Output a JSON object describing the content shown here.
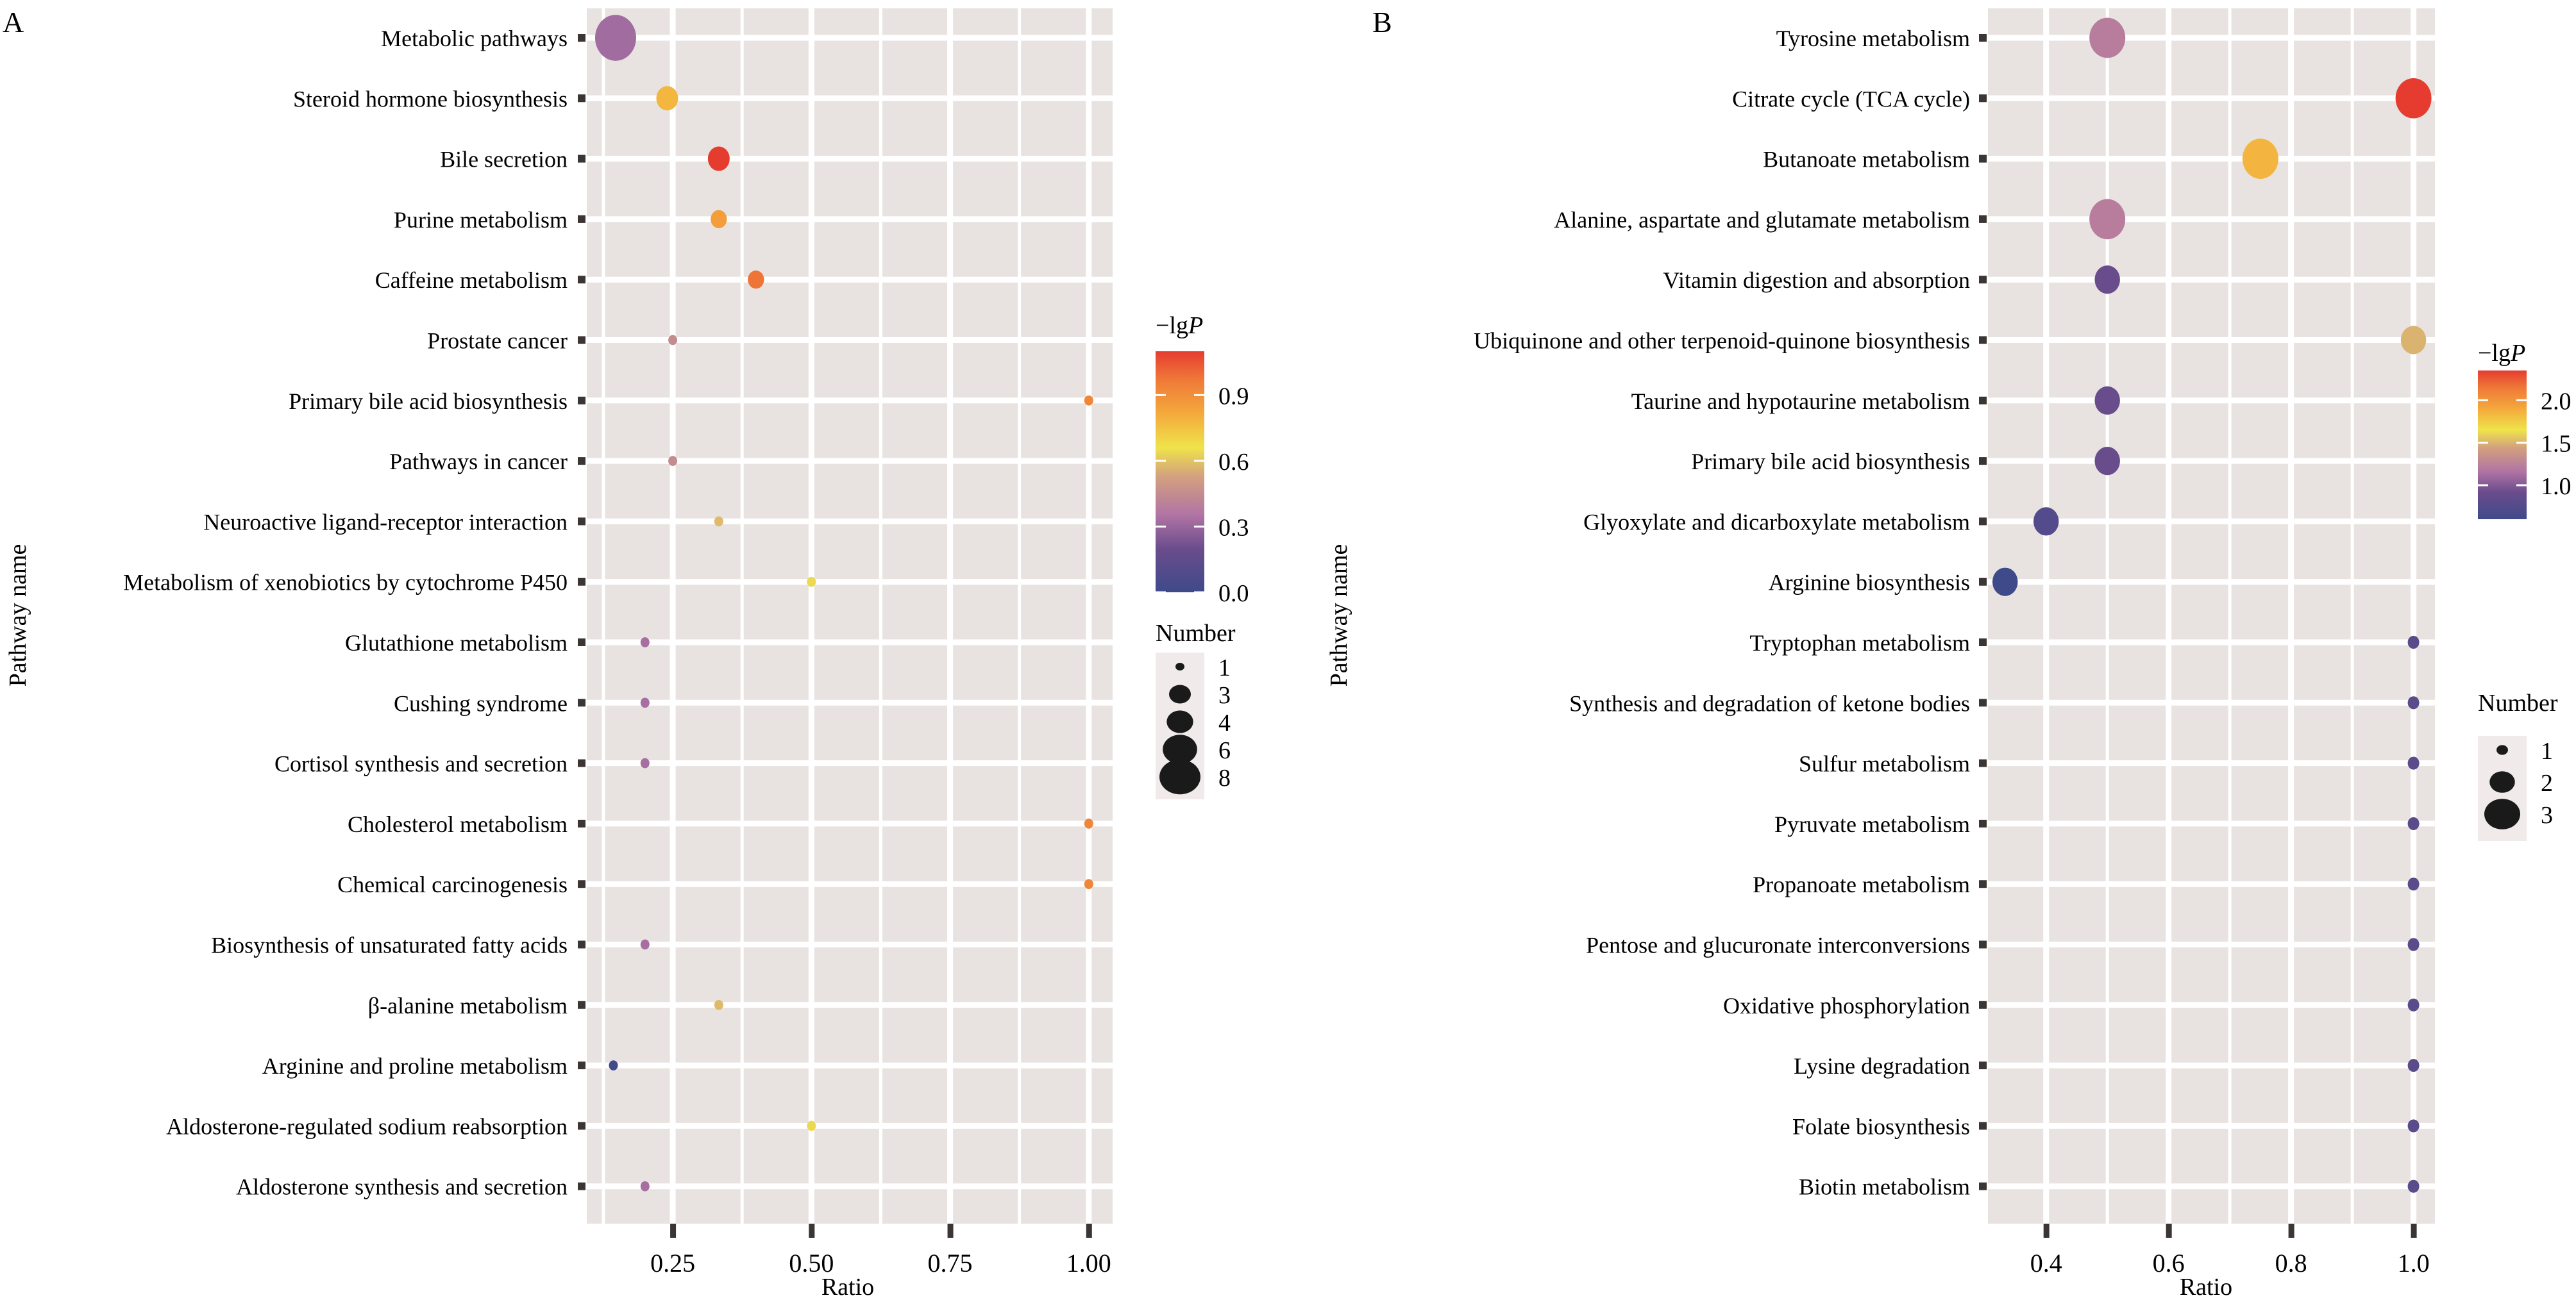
{
  "chart_data": [
    {
      "type": "scatter",
      "panel_label": "A",
      "title": "",
      "xlabel": "Ratio",
      "ylabel": "Pathway name",
      "xlim": [
        0.095,
        1.043
      ],
      "xticks": [
        0.25,
        0.5,
        0.75,
        1.0
      ],
      "xtick_labels": [
        "0.25",
        "0.50",
        "0.75",
        "1.00"
      ],
      "grid": true,
      "panel_background": "#e8e3e0",
      "color_legend": {
        "title": "−lg",
        "title_italic": "P",
        "min": 0.0,
        "max": 1.1,
        "ticks": [
          0.0,
          0.3,
          0.6,
          0.9
        ],
        "tick_labels": [
          "0.0",
          "0.3",
          "0.6",
          "0.9"
        ]
      },
      "size_legend": {
        "title": "Number",
        "values": [
          1,
          3,
          4,
          6,
          8
        ],
        "labels": [
          "1",
          "3",
          "4",
          "6",
          "8"
        ]
      },
      "legend_position": "right",
      "points": [
        {
          "pathway": "Metabolic pathways",
          "ratio": 0.147,
          "number": 8,
          "neglgP": 0.32
        },
        {
          "pathway": "Steroid hormone biosynthesis",
          "ratio": 0.24,
          "number": 3,
          "neglgP": 0.78
        },
        {
          "pathway": "Bile secretion",
          "ratio": 0.333,
          "number": 3,
          "neglgP": 1.1
        },
        {
          "pathway": "Purine metabolism",
          "ratio": 0.333,
          "number": 2,
          "neglgP": 0.85
        },
        {
          "pathway": "Caffeine metabolism",
          "ratio": 0.4,
          "number": 2,
          "neglgP": 0.98
        },
        {
          "pathway": "Prostate cancer",
          "ratio": 0.25,
          "number": 1,
          "neglgP": 0.45
        },
        {
          "pathway": "Primary bile acid biosynthesis",
          "ratio": 1.0,
          "number": 1,
          "neglgP": 0.93
        },
        {
          "pathway": "Pathways in cancer",
          "ratio": 0.25,
          "number": 1,
          "neglgP": 0.45
        },
        {
          "pathway": "Neuroactive ligand-receptor interaction ",
          "ratio": 0.333,
          "number": 1,
          "neglgP": 0.58
        },
        {
          "pathway": "Metabolism of xenobiotics by cytochrome P450",
          "ratio": 0.5,
          "number": 1,
          "neglgP": 0.64
        },
        {
          "pathway": "Glutathione metabolism",
          "ratio": 0.2,
          "number": 1,
          "neglgP": 0.33
        },
        {
          "pathway": "Cushing syndrome",
          "ratio": 0.2,
          "number": 1,
          "neglgP": 0.33
        },
        {
          "pathway": "Cortisol synthesis and secretion",
          "ratio": 0.2,
          "number": 1,
          "neglgP": 0.33
        },
        {
          "pathway": "Cholesterol metabolism",
          "ratio": 1.0,
          "number": 1,
          "neglgP": 0.93
        },
        {
          "pathway": "Chemical carcinogenesis",
          "ratio": 1.0,
          "number": 1,
          "neglgP": 0.93
        },
        {
          "pathway": "Biosynthesis of unsaturated fatty acids",
          "ratio": 0.2,
          "number": 1,
          "neglgP": 0.33
        },
        {
          "pathway": "β-alanine metabolism",
          "ratio": 0.333,
          "number": 1,
          "neglgP": 0.58
        },
        {
          "pathway": "Arginine and proline metabolism",
          "ratio": 0.143,
          "number": 1,
          "neglgP": 0.02
        },
        {
          "pathway": "Aldosterone-regulated sodium reabsorption",
          "ratio": 0.5,
          "number": 1,
          "neglgP": 0.64
        },
        {
          "pathway": "Aldosterone synthesis and secretion",
          "ratio": 0.2,
          "number": 1,
          "neglgP": 0.33
        }
      ]
    },
    {
      "type": "scatter",
      "panel_label": "B",
      "title": "",
      "xlabel": "Ratio",
      "ylabel": "Pathway name",
      "xlim": [
        0.305,
        1.035
      ],
      "xticks": [
        0.4,
        0.6,
        0.8,
        1.0
      ],
      "xtick_labels": [
        "0.4",
        "0.6",
        "0.8",
        "1.0"
      ],
      "grid": true,
      "panel_background": "#e8e3e0",
      "color_legend": {
        "title": "−lg",
        "title_italic": "P",
        "min": 0.6,
        "max": 2.35,
        "ticks": [
          1.0,
          1.5,
          2.0
        ],
        "tick_labels": [
          "1.0",
          "1.5",
          "2.0"
        ]
      },
      "size_legend": {
        "title": "Number",
        "values": [
          1,
          2,
          3
        ],
        "labels": [
          "1",
          "2",
          "3"
        ]
      },
      "legend_position": "right",
      "points": [
        {
          "pathway": "Tyrosine metabolism",
          "ratio": 0.5,
          "number": 3,
          "neglgP": 1.22
        },
        {
          "pathway": "Citrate cycle (TCA cycle)",
          "ratio": 1.0,
          "number": 3,
          "neglgP": 2.35
        },
        {
          "pathway": "Butanoate metabolism ",
          "ratio": 0.75,
          "number": 3,
          "neglgP": 1.85
        },
        {
          "pathway": "Alanine, aspartate and glutamate metabolism",
          "ratio": 0.5,
          "number": 3,
          "neglgP": 1.22
        },
        {
          "pathway": "Vitamin digestion and absorption",
          "ratio": 0.5,
          "number": 2,
          "neglgP": 0.9
        },
        {
          "pathway": "Ubiquinone and other terpenoid-quinone biosynthesis",
          "ratio": 1.0,
          "number": 2,
          "neglgP": 1.5
        },
        {
          "pathway": "Taurine and hypotaurine metabolism",
          "ratio": 0.5,
          "number": 2,
          "neglgP": 0.9
        },
        {
          "pathway": "Primary bile acid biosynthesis",
          "ratio": 0.5,
          "number": 2,
          "neglgP": 0.9
        },
        {
          "pathway": "Glyoxylate and dicarboxylate metabolism",
          "ratio": 0.4,
          "number": 2,
          "neglgP": 0.75
        },
        {
          "pathway": "Arginine biosynthesis",
          "ratio": 0.333,
          "number": 2,
          "neglgP": 0.6
        },
        {
          "pathway": "Tryptophan metabolism",
          "ratio": 1.0,
          "number": 1,
          "neglgP": 0.8
        },
        {
          "pathway": "Synthesis and degradation of ketone bodies ",
          "ratio": 1.0,
          "number": 1,
          "neglgP": 0.8
        },
        {
          "pathway": "Sulfur metabolism",
          "ratio": 1.0,
          "number": 1,
          "neglgP": 0.8
        },
        {
          "pathway": "Pyruvate metabolism ",
          "ratio": 1.0,
          "number": 1,
          "neglgP": 0.8
        },
        {
          "pathway": "Propanoate metabolism ",
          "ratio": 1.0,
          "number": 1,
          "neglgP": 0.8
        },
        {
          "pathway": "Pentose and glucuronate interconversions",
          "ratio": 1.0,
          "number": 1,
          "neglgP": 0.8
        },
        {
          "pathway": "Oxidative phosphorylation",
          "ratio": 1.0,
          "number": 1,
          "neglgP": 0.8
        },
        {
          "pathway": "Lysine degradation ",
          "ratio": 1.0,
          "number": 1,
          "neglgP": 0.8
        },
        {
          "pathway": "Folate biosynthesis ",
          "ratio": 1.0,
          "number": 1,
          "neglgP": 0.8
        },
        {
          "pathway": "Biotin metabolism",
          "ratio": 1.0,
          "number": 1,
          "neglgP": 0.8
        }
      ]
    }
  ],
  "colorscale": [
    "#3f4a8a",
    "#6a4c8c",
    "#b074a4",
    "#d3a07f",
    "#efe34a",
    "#f4a63c",
    "#ef7a38",
    "#e63c30"
  ]
}
